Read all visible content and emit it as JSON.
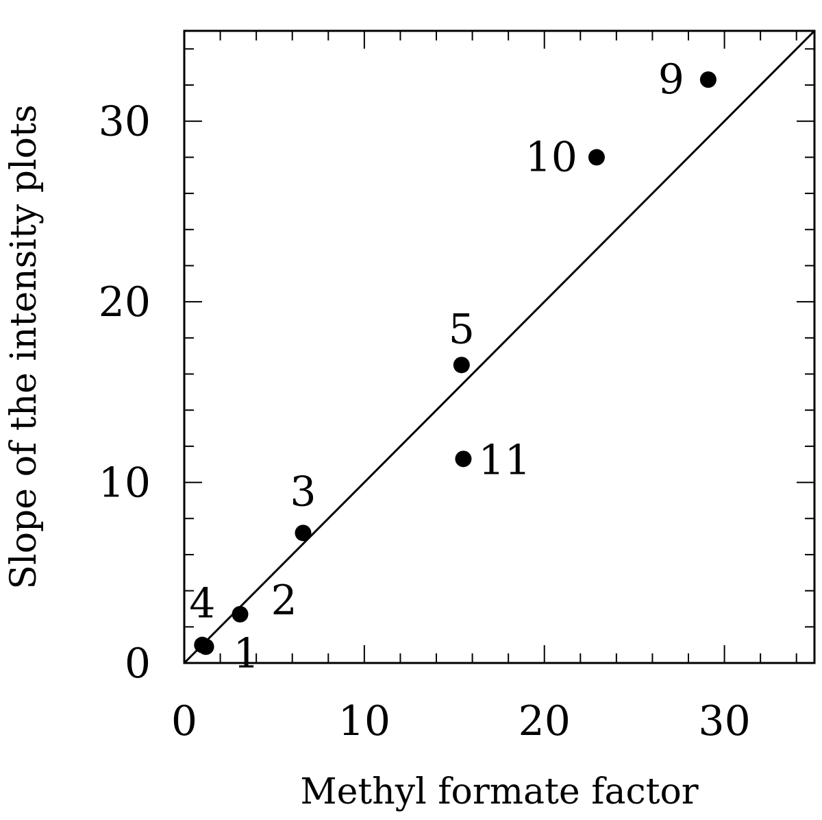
{
  "chart_data": {
    "type": "scatter",
    "xlabel": "Methyl formate factor",
    "ylabel": "Slope of the intensity plots",
    "xlim": [
      0,
      35
    ],
    "ylim": [
      0,
      35
    ],
    "xticks": [
      0,
      10,
      20,
      30
    ],
    "yticks": [
      0,
      10,
      20,
      30
    ],
    "minor_tick_step": 2,
    "grid": false,
    "line": {
      "type": "identity",
      "x": [
        0,
        35
      ],
      "y": [
        0,
        35
      ]
    },
    "points": [
      {
        "label": "1",
        "x": 1.2,
        "y": 0.9
      },
      {
        "label": "2",
        "x": 3.1,
        "y": 2.7
      },
      {
        "label": "3",
        "x": 6.6,
        "y": 7.2
      },
      {
        "label": "4",
        "x": 1.0,
        "y": 1.0
      },
      {
        "label": "5",
        "x": 15.4,
        "y": 16.5
      },
      {
        "label": "9",
        "x": 29.1,
        "y": 32.3
      },
      {
        "label": "10",
        "x": 22.9,
        "y": 28.0
      },
      {
        "label": "11",
        "x": 15.5,
        "y": 11.3
      }
    ],
    "colors": {
      "marks": "#000000",
      "background": "#ffffff"
    }
  }
}
